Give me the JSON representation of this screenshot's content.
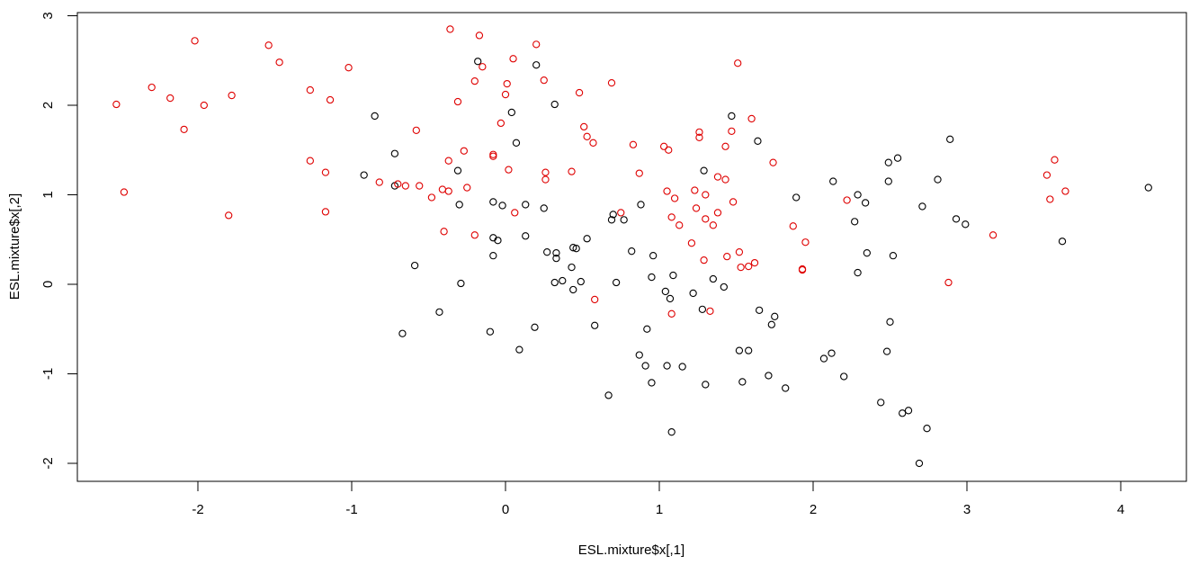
{
  "chart_data": {
    "type": "scatter",
    "title": "",
    "xlabel": "ESL.mixture$x[,1]",
    "ylabel": "ESL.mixture$x[,2]",
    "xlim": [
      -2.7,
      4.3
    ],
    "ylim": [
      -2.2,
      3.0
    ],
    "xticks": [
      -2,
      -1,
      0,
      1,
      2,
      3,
      4
    ],
    "yticks": [
      -2,
      -1,
      0,
      1,
      2,
      3
    ],
    "grid": false,
    "legend": "none",
    "series": [
      {
        "color": "#000000",
        "points": [
          [
            -0.85,
            1.88
          ],
          [
            -0.92,
            1.22
          ],
          [
            -0.72,
            1.46
          ],
          [
            -0.72,
            1.1
          ],
          [
            -0.67,
            -0.55
          ],
          [
            -0.59,
            0.21
          ],
          [
            -0.43,
            -0.31
          ],
          [
            -0.31,
            1.27
          ],
          [
            -0.3,
            0.89
          ],
          [
            -0.29,
            0.01
          ],
          [
            -0.18,
            2.49
          ],
          [
            -0.1,
            -0.53
          ],
          [
            -0.08,
            0.92
          ],
          [
            -0.08,
            0.52
          ],
          [
            -0.08,
            0.32
          ],
          [
            -0.05,
            0.49
          ],
          [
            -0.02,
            0.88
          ],
          [
            0.04,
            1.92
          ],
          [
            0.07,
            1.58
          ],
          [
            0.09,
            -0.73
          ],
          [
            0.13,
            0.54
          ],
          [
            0.13,
            0.89
          ],
          [
            0.19,
            -0.48
          ],
          [
            0.2,
            2.45
          ],
          [
            0.25,
            0.85
          ],
          [
            0.27,
            0.36
          ],
          [
            0.32,
            2.01
          ],
          [
            0.32,
            0.02
          ],
          [
            0.33,
            0.29
          ],
          [
            0.33,
            0.35
          ],
          [
            0.37,
            0.04
          ],
          [
            0.43,
            0.19
          ],
          [
            0.44,
            -0.06
          ],
          [
            0.44,
            0.41
          ],
          [
            0.46,
            0.4
          ],
          [
            0.49,
            0.03
          ],
          [
            0.53,
            0.51
          ],
          [
            0.58,
            -0.46
          ],
          [
            0.67,
            -1.24
          ],
          [
            0.69,
            0.72
          ],
          [
            0.7,
            0.78
          ],
          [
            0.72,
            0.02
          ],
          [
            0.77,
            0.72
          ],
          [
            0.82,
            0.37
          ],
          [
            0.87,
            -0.79
          ],
          [
            0.88,
            0.89
          ],
          [
            0.91,
            -0.91
          ],
          [
            0.92,
            -0.5
          ],
          [
            0.95,
            0.08
          ],
          [
            0.95,
            -1.1
          ],
          [
            0.96,
            0.32
          ],
          [
            1.04,
            -0.08
          ],
          [
            1.05,
            -0.91
          ],
          [
            1.07,
            -0.16
          ],
          [
            1.08,
            -1.65
          ],
          [
            1.09,
            0.1
          ],
          [
            1.15,
            -0.92
          ],
          [
            1.22,
            -0.1
          ],
          [
            1.28,
            -0.28
          ],
          [
            1.29,
            1.27
          ],
          [
            1.3,
            -1.12
          ],
          [
            1.35,
            0.06
          ],
          [
            1.42,
            -0.03
          ],
          [
            1.47,
            1.88
          ],
          [
            1.52,
            -0.74
          ],
          [
            1.54,
            -1.09
          ],
          [
            1.58,
            -0.74
          ],
          [
            1.64,
            1.6
          ],
          [
            1.65,
            -0.29
          ],
          [
            1.71,
            -1.02
          ],
          [
            1.73,
            -0.45
          ],
          [
            1.75,
            -0.36
          ],
          [
            1.82,
            -1.16
          ],
          [
            1.89,
            0.97
          ],
          [
            2.07,
            -0.83
          ],
          [
            2.12,
            -0.77
          ],
          [
            2.13,
            1.15
          ],
          [
            2.2,
            -1.03
          ],
          [
            2.27,
            0.7
          ],
          [
            2.29,
            1.0
          ],
          [
            2.29,
            0.13
          ],
          [
            2.34,
            0.91
          ],
          [
            2.35,
            0.35
          ],
          [
            2.44,
            -1.32
          ],
          [
            2.48,
            -0.75
          ],
          [
            2.49,
            1.36
          ],
          [
            2.49,
            1.15
          ],
          [
            2.5,
            -0.42
          ],
          [
            2.52,
            0.32
          ],
          [
            2.55,
            1.41
          ],
          [
            2.58,
            -1.44
          ],
          [
            2.62,
            -1.41
          ],
          [
            2.69,
            -2.0
          ],
          [
            2.71,
            0.87
          ],
          [
            2.74,
            -1.61
          ],
          [
            2.81,
            1.17
          ],
          [
            2.89,
            1.62
          ],
          [
            2.93,
            0.73
          ],
          [
            2.99,
            0.67
          ],
          [
            3.62,
            0.48
          ],
          [
            4.18,
            1.08
          ]
        ]
      },
      {
        "color": "#df0000",
        "points": [
          [
            -2.53,
            2.01
          ],
          [
            -2.48,
            1.03
          ],
          [
            -2.3,
            2.2
          ],
          [
            -2.18,
            2.08
          ],
          [
            -2.09,
            1.73
          ],
          [
            -2.02,
            2.72
          ],
          [
            -1.96,
            2.0
          ],
          [
            -1.8,
            0.77
          ],
          [
            -1.78,
            2.11
          ],
          [
            -1.54,
            2.67
          ],
          [
            -1.47,
            2.48
          ],
          [
            -1.27,
            2.17
          ],
          [
            -1.27,
            1.38
          ],
          [
            -1.17,
            1.25
          ],
          [
            -1.17,
            0.81
          ],
          [
            -1.14,
            2.06
          ],
          [
            -1.02,
            2.42
          ],
          [
            -0.82,
            1.14
          ],
          [
            -0.7,
            1.12
          ],
          [
            -0.65,
            1.1
          ],
          [
            -0.58,
            1.72
          ],
          [
            -0.56,
            1.1
          ],
          [
            -0.48,
            0.97
          ],
          [
            -0.41,
            1.06
          ],
          [
            -0.4,
            0.59
          ],
          [
            -0.37,
            1.38
          ],
          [
            -0.37,
            1.04
          ],
          [
            -0.36,
            2.85
          ],
          [
            -0.31,
            2.04
          ],
          [
            -0.27,
            1.49
          ],
          [
            -0.25,
            1.08
          ],
          [
            -0.2,
            2.27
          ],
          [
            -0.2,
            0.55
          ],
          [
            -0.17,
            2.78
          ],
          [
            -0.15,
            2.43
          ],
          [
            -0.08,
            1.45
          ],
          [
            -0.08,
            1.43
          ],
          [
            -0.03,
            1.8
          ],
          [
            0.0,
            2.12
          ],
          [
            0.01,
            2.24
          ],
          [
            0.02,
            1.28
          ],
          [
            0.05,
            2.52
          ],
          [
            0.06,
            0.8
          ],
          [
            0.2,
            2.68
          ],
          [
            0.25,
            2.28
          ],
          [
            0.26,
            1.25
          ],
          [
            0.26,
            1.17
          ],
          [
            0.43,
            1.26
          ],
          [
            0.48,
            2.14
          ],
          [
            0.51,
            1.76
          ],
          [
            0.53,
            1.65
          ],
          [
            0.57,
            1.58
          ],
          [
            0.58,
            -0.17
          ],
          [
            0.69,
            2.25
          ],
          [
            0.75,
            0.8
          ],
          [
            0.83,
            1.56
          ],
          [
            0.87,
            1.24
          ],
          [
            1.03,
            1.54
          ],
          [
            1.05,
            1.04
          ],
          [
            1.06,
            1.5
          ],
          [
            1.08,
            0.75
          ],
          [
            1.08,
            -0.33
          ],
          [
            1.1,
            0.96
          ],
          [
            1.13,
            0.66
          ],
          [
            1.21,
            0.46
          ],
          [
            1.23,
            1.05
          ],
          [
            1.24,
            0.85
          ],
          [
            1.26,
            1.7
          ],
          [
            1.26,
            1.64
          ],
          [
            1.29,
            0.27
          ],
          [
            1.3,
            1.0
          ],
          [
            1.3,
            0.73
          ],
          [
            1.33,
            -0.3
          ],
          [
            1.35,
            0.66
          ],
          [
            1.38,
            1.2
          ],
          [
            1.38,
            0.8
          ],
          [
            1.43,
            1.17
          ],
          [
            1.43,
            1.54
          ],
          [
            1.44,
            0.31
          ],
          [
            1.47,
            1.71
          ],
          [
            1.48,
            0.92
          ],
          [
            1.51,
            2.47
          ],
          [
            1.52,
            0.36
          ],
          [
            1.53,
            0.19
          ],
          [
            1.58,
            0.2
          ],
          [
            1.6,
            1.85
          ],
          [
            1.62,
            0.24
          ],
          [
            1.74,
            1.36
          ],
          [
            1.87,
            0.65
          ],
          [
            1.93,
            0.16
          ],
          [
            1.93,
            0.17
          ],
          [
            1.95,
            0.47
          ],
          [
            2.22,
            0.94
          ],
          [
            2.88,
            0.02
          ],
          [
            3.17,
            0.55
          ],
          [
            3.52,
            1.22
          ],
          [
            3.54,
            0.95
          ],
          [
            3.57,
            1.39
          ],
          [
            3.64,
            1.04
          ]
        ]
      }
    ]
  }
}
